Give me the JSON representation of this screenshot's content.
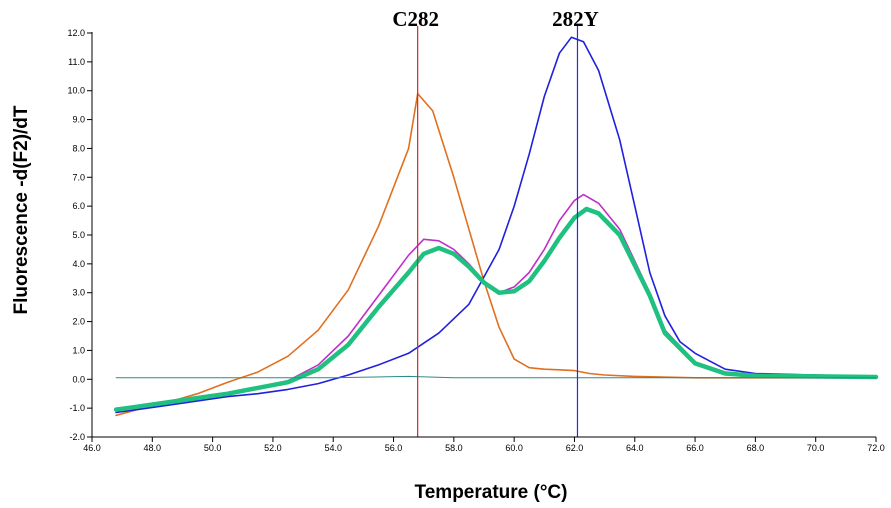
{
  "chart_data": {
    "type": "line",
    "title": "",
    "xlabel": "Temperature (°C)",
    "ylabel": "Fluorescence -d(F2)/dT",
    "xlim": [
      46.0,
      72.0
    ],
    "ylim": [
      -2.0,
      12.0
    ],
    "x_ticks": [
      "46.0",
      "48.0",
      "50.0",
      "52.0",
      "54.0",
      "56.0",
      "58.0",
      "60.0",
      "62.0",
      "64.0",
      "66.0",
      "68.0",
      "70.0",
      "72.0"
    ],
    "y_ticks": [
      "-2.0",
      "-1.0",
      "0.0",
      "1.0",
      "2.0",
      "3.0",
      "4.0",
      "5.0",
      "6.0",
      "7.0",
      "8.0",
      "9.0",
      "10.0",
      "11.0",
      "12.0"
    ],
    "markers": [
      {
        "label": "C282",
        "x": 56.8,
        "color": "#dd2222"
      },
      {
        "label": "282Y",
        "x": 62.1,
        "color": "#2a2ae0"
      }
    ],
    "series": [
      {
        "color": "#e07020",
        "width": 1.6,
        "x": [
          46.8,
          47.5,
          48.5,
          49.5,
          50.5,
          51.5,
          52.5,
          53.5,
          54.5,
          55.5,
          56.5,
          56.8,
          57.3,
          58.0,
          58.5,
          59.0,
          59.5,
          60.0,
          60.5,
          61.0,
          61.5,
          62.0,
          62.5,
          63.0,
          64.0,
          66.0,
          68.0,
          70.0,
          72.0
        ],
        "y": [
          -1.25,
          -1.05,
          -0.8,
          -0.5,
          -0.1,
          0.25,
          0.8,
          1.7,
          3.1,
          5.3,
          8.0,
          9.9,
          9.3,
          7.0,
          5.2,
          3.4,
          1.8,
          0.7,
          0.4,
          0.35,
          0.33,
          0.3,
          0.2,
          0.15,
          0.1,
          0.05,
          0.05,
          0.05,
          0.05
        ]
      },
      {
        "color": "#2020dd",
        "width": 1.6,
        "x": [
          46.8,
          47.5,
          48.5,
          49.5,
          50.5,
          51.5,
          52.5,
          53.5,
          54.5,
          55.5,
          56.5,
          57.5,
          58.5,
          59.5,
          60.0,
          60.5,
          61.0,
          61.5,
          61.9,
          62.3,
          62.8,
          63.5,
          64.0,
          64.5,
          65.0,
          65.5,
          66.0,
          67.0,
          68.0,
          70.0,
          72.0
        ],
        "y": [
          -1.15,
          -1.05,
          -0.9,
          -0.75,
          -0.6,
          -0.5,
          -0.35,
          -0.15,
          0.15,
          0.5,
          0.9,
          1.6,
          2.6,
          4.5,
          6.0,
          7.8,
          9.8,
          11.3,
          11.85,
          11.7,
          10.7,
          8.3,
          6.0,
          3.7,
          2.2,
          1.3,
          0.9,
          0.35,
          0.2,
          0.15,
          0.1
        ]
      },
      {
        "color": "#c030c8",
        "width": 1.6,
        "x": [
          46.8,
          47.5,
          48.5,
          49.5,
          50.5,
          51.5,
          52.5,
          53.5,
          54.5,
          55.5,
          56.5,
          57.0,
          57.5,
          58.0,
          58.5,
          59.0,
          59.5,
          60.0,
          60.5,
          61.0,
          61.5,
          62.0,
          62.3,
          62.8,
          63.5,
          64.5,
          65.0,
          66.0,
          67.0,
          68.0,
          70.0,
          72.0
        ],
        "y": [
          -1.05,
          -0.95,
          -0.8,
          -0.65,
          -0.5,
          -0.3,
          -0.05,
          0.5,
          1.5,
          2.9,
          4.3,
          4.85,
          4.8,
          4.5,
          4.0,
          3.4,
          3.0,
          3.2,
          3.7,
          4.5,
          5.5,
          6.2,
          6.4,
          6.1,
          5.2,
          3.0,
          1.7,
          0.6,
          0.25,
          0.15,
          0.1,
          0.08
        ]
      },
      {
        "color": "#20c080",
        "width": 4.5,
        "x": [
          46.8,
          47.5,
          48.5,
          49.5,
          50.5,
          51.5,
          52.5,
          53.5,
          54.5,
          55.5,
          56.5,
          57.0,
          57.5,
          58.0,
          58.5,
          59.0,
          59.5,
          60.0,
          60.5,
          61.0,
          61.5,
          62.0,
          62.4,
          62.8,
          63.5,
          64.5,
          65.0,
          66.0,
          67.0,
          68.0,
          70.0,
          72.0
        ],
        "y": [
          -1.05,
          -0.95,
          -0.8,
          -0.65,
          -0.5,
          -0.3,
          -0.1,
          0.35,
          1.2,
          2.5,
          3.7,
          4.35,
          4.55,
          4.35,
          3.9,
          3.35,
          3.0,
          3.05,
          3.4,
          4.1,
          4.9,
          5.6,
          5.9,
          5.75,
          5.0,
          2.9,
          1.6,
          0.55,
          0.2,
          0.12,
          0.1,
          0.08
        ]
      },
      {
        "color": "#2a8c8c",
        "width": 1.0,
        "x": [
          46.8,
          50.0,
          54.0,
          56.5,
          58.0,
          62.0,
          66.0,
          70.0,
          72.0
        ],
        "y": [
          0.05,
          0.05,
          0.05,
          0.1,
          0.05,
          0.05,
          0.05,
          0.05,
          0.05
        ]
      }
    ]
  }
}
